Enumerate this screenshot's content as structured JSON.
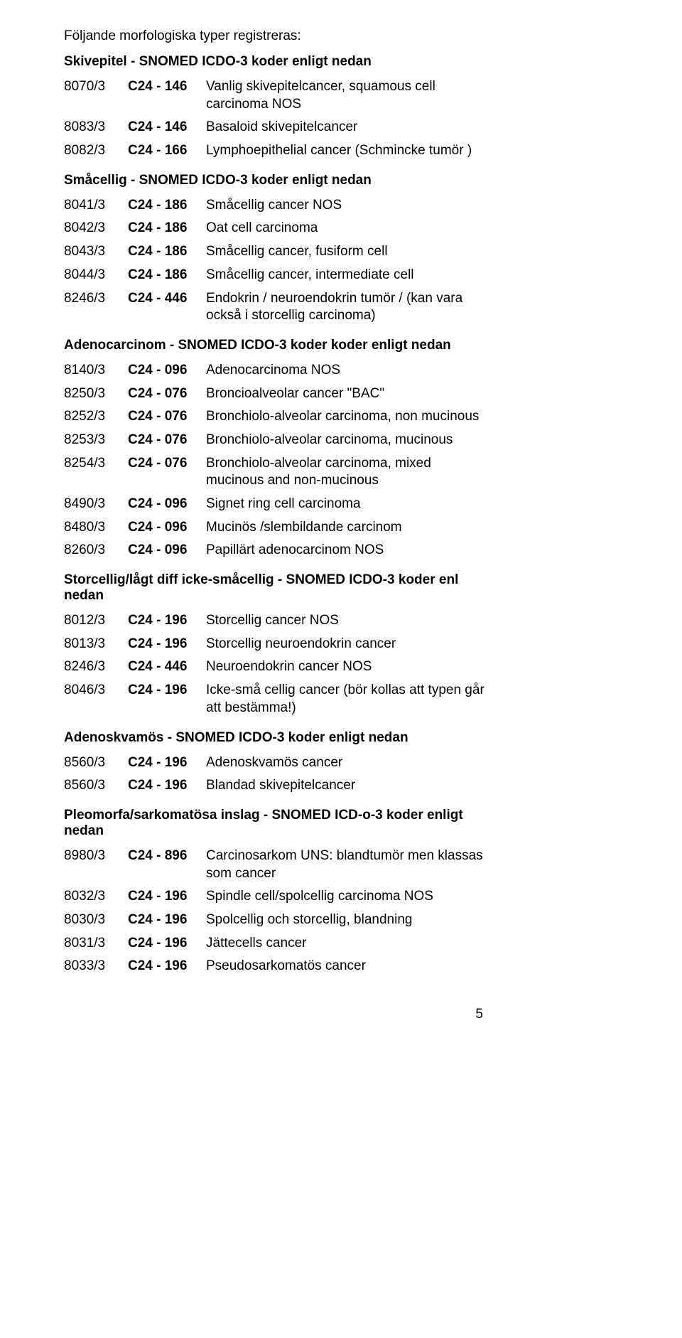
{
  "intro": "Följande morfologiska typer registreras:",
  "page_number": "5",
  "sections": [
    {
      "title": "Skivepitel  - SNOMED ICDO-3 koder enligt nedan",
      "rows": [
        {
          "code": "8070/3",
          "c24": "C24 - 146",
          "desc": "Vanlig skivepitelcancer, squamous cell carcinoma NOS"
        },
        {
          "code": "8083/3",
          "c24": "C24 - 146",
          "desc": "Basaloid skivepitelcancer"
        },
        {
          "code": "8082/3",
          "c24": "C24 - 166",
          "desc": "Lymphoepithelial cancer (Schmincke tumör )"
        }
      ]
    },
    {
      "title": "Småcellig - SNOMED ICDO-3 koder enligt nedan",
      "rows": [
        {
          "code": "8041/3",
          "c24": "C24 - 186",
          "desc": "Småcellig cancer NOS"
        },
        {
          "code": "8042/3",
          "c24": "C24 - 186",
          "desc": "Oat cell carcinoma"
        },
        {
          "code": "8043/3",
          "c24": "C24 - 186",
          "desc": "Småcellig cancer, fusiform cell"
        },
        {
          "code": "8044/3",
          "c24": "C24 - 186",
          "desc": "Småcellig cancer, intermediate cell"
        },
        {
          "code": "8246/3",
          "c24": "C24 - 446",
          "desc": "Endokrin / neuroendokrin tumör /\n(kan vara också i storcellig carcinoma)"
        }
      ]
    },
    {
      "title": "Adenocarcinom - SNOMED ICDO-3 koder koder enligt nedan",
      "rows": [
        {
          "code": "8140/3",
          "c24": "C24 - 096",
          "desc": "Adenocarcinoma NOS"
        },
        {
          "code": "8250/3",
          "c24": "C24 - 076",
          "desc": "Broncioalveolar cancer \"BAC\""
        },
        {
          "code": "8252/3",
          "c24": "C24 - 076",
          "desc": "Bronchiolo-alveolar carcinoma, non mucinous"
        },
        {
          "code": "8253/3",
          "c24": "C24 - 076",
          "desc": "Bronchiolo-alveolar carcinoma, mucinous"
        },
        {
          "code": "8254/3",
          "c24": "C24 - 076",
          "desc": "Bronchiolo-alveolar carcinoma, mixed mucinous and non-mucinous"
        },
        {
          "code": "8490/3",
          "c24": "C24 - 096",
          "desc": "Signet ring cell carcinoma"
        },
        {
          "code": "8480/3",
          "c24": "C24 - 096",
          "desc": "Mucinös /slembildande carcinom"
        },
        {
          "code": "8260/3",
          "c24": "C24 - 096",
          "desc": "Papillärt adenocarcinom NOS"
        }
      ]
    },
    {
      "title": "Storcellig/lågt diff icke-småcellig - SNOMED ICDO-3 koder enl nedan",
      "rows": [
        {
          "code": "8012/3",
          "c24": "C24 - 196",
          "desc": "Storcellig cancer NOS"
        },
        {
          "code": "8013/3",
          "c24": "C24 - 196",
          "desc": "Storcellig neuroendokrin cancer"
        },
        {
          "code": "8246/3",
          "c24": "C24 - 446",
          "desc": "Neuroendokrin cancer NOS"
        },
        {
          "code": "8046/3",
          "c24": "C24 - 196",
          "desc": "Icke-små cellig cancer  (bör kollas att typen går att bestämma!)"
        }
      ]
    },
    {
      "title": "Adenoskvamös - SNOMED ICDO-3 koder enligt nedan",
      "rows": [
        {
          "code": "8560/3",
          "c24": "C24 - 196",
          "desc": "Adenoskvamös cancer"
        },
        {
          "code": "8560/3",
          "c24": "C24 - 196",
          "desc": "Blandad skivepitelcancer"
        }
      ]
    },
    {
      "title": "Pleomorfa/sarkomatösa inslag - SNOMED ICD-o-3 koder enligt nedan",
      "rows": [
        {
          "code": "8980/3",
          "c24": "C24 - 896",
          "desc": "Carcinosarkom UNS: blandtumör men klassas som cancer"
        },
        {
          "code": "8032/3",
          "c24": "C24 - 196",
          "desc": "Spindle cell/spolcellig carcinoma  NOS"
        },
        {
          "code": "8030/3",
          "c24": "C24 - 196",
          "desc": "Spolcellig och storcellig, blandning"
        },
        {
          "code": "8031/3",
          "c24": "C24 - 196",
          "desc": "Jättecells cancer"
        },
        {
          "code": "8033/3",
          "c24": "C24 - 196",
          "desc": "Pseudosarkomatös cancer"
        }
      ]
    }
  ]
}
